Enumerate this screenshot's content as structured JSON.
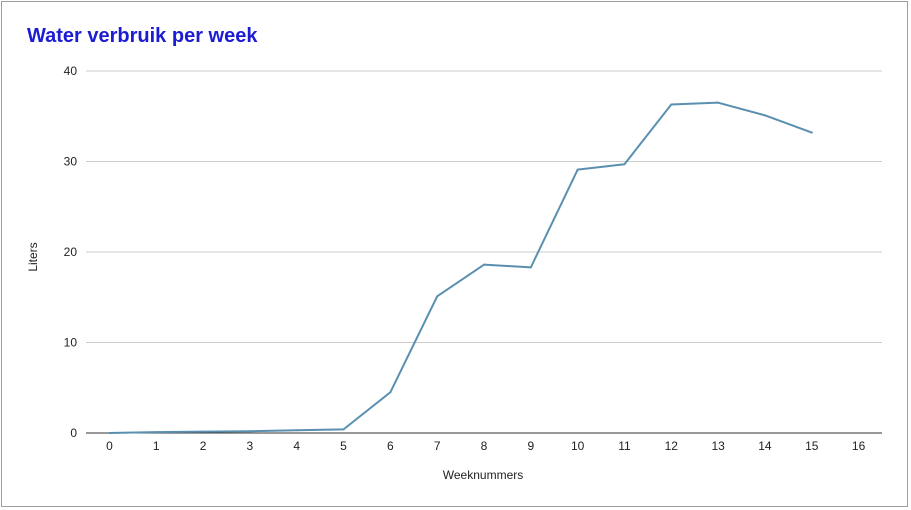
{
  "chart_data": {
    "type": "line",
    "title": "Water verbruik per week",
    "xlabel": "Weeknummers",
    "ylabel": "Liters",
    "xlim": [
      -0.5,
      16.5
    ],
    "ylim": [
      0,
      40
    ],
    "x_ticks": [
      0,
      1,
      2,
      3,
      4,
      5,
      6,
      7,
      8,
      9,
      10,
      11,
      12,
      13,
      14,
      15,
      16
    ],
    "y_ticks": [
      0,
      10,
      20,
      30,
      40
    ],
    "grid": true,
    "legend": "none",
    "series": [
      {
        "color": "#5b8fb0",
        "x": [
          0,
          1,
          2,
          3,
          4,
          5,
          6,
          7,
          8,
          9,
          10,
          11,
          12,
          13,
          14,
          15
        ],
        "values": [
          0,
          0.1,
          0.15,
          0.2,
          0.3,
          0.4,
          4.5,
          15.1,
          18.6,
          18.3,
          29.1,
          29.7,
          36.3,
          36.5,
          35.1,
          33.2
        ]
      }
    ]
  }
}
